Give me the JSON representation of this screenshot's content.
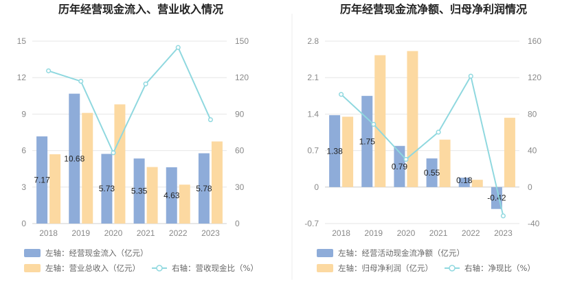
{
  "chart_data": [
    {
      "type": "bar",
      "title": "历年经营现金流入、营业收入情况",
      "categories": [
        "2018",
        "2019",
        "2020",
        "2021",
        "2022",
        "2023"
      ],
      "left_axis": {
        "min": 0,
        "max": 15,
        "ticks": [
          "0",
          "3",
          "6",
          "9",
          "12",
          "15"
        ]
      },
      "right_axis": {
        "min": 0,
        "max": 150,
        "ticks": [
          "0",
          "30",
          "60",
          "90",
          "120",
          "150"
        ]
      },
      "series": [
        {
          "name": "左轴：经营现金流入（亿元）",
          "type": "bar",
          "axis": "left",
          "color": "#8eacd9",
          "values": [
            7.17,
            10.68,
            5.73,
            5.35,
            4.63,
            5.78
          ],
          "labels": [
            "7.17",
            "10.68",
            "5.73",
            "5.35",
            "4.63",
            "5.78"
          ]
        },
        {
          "name": "左轴：营业总收入（亿元）",
          "type": "bar",
          "axis": "left",
          "color": "#fcd9a1",
          "values": [
            5.7,
            9.1,
            9.8,
            4.65,
            3.2,
            6.75
          ]
        },
        {
          "name": "右轴：营收现金比（%）",
          "type": "line",
          "axis": "right",
          "color": "#8fd8df",
          "values": [
            125.6,
            117.0,
            58.2,
            114.8,
            144.8,
            85.4
          ]
        }
      ],
      "grid": true,
      "legend_position": "bottom"
    },
    {
      "type": "bar",
      "title": "历年经营现金流净额、归母净利润情况",
      "categories": [
        "2018",
        "2019",
        "2020",
        "2021",
        "2022",
        "2023"
      ],
      "left_axis": {
        "min": -0.7,
        "max": 2.8,
        "ticks": [
          "-0.7",
          "0",
          "0.7",
          "1.4",
          "2.1",
          "2.8"
        ]
      },
      "right_axis": {
        "min": -40,
        "max": 160,
        "ticks": [
          "-40",
          "0",
          "40",
          "80",
          "120",
          "160"
        ]
      },
      "series": [
        {
          "name": "左轴：经营活动现金流净额（亿元）",
          "type": "bar",
          "axis": "left",
          "color": "#8eacd9",
          "values": [
            1.38,
            1.75,
            0.79,
            0.55,
            0.18,
            -0.42
          ],
          "labels": [
            "1.38",
            "1.75",
            "0.79",
            "0.55",
            "0.18",
            "-0.42"
          ]
        },
        {
          "name": "左轴：归母净利润（亿元）",
          "type": "bar",
          "axis": "left",
          "color": "#fcd9a1",
          "values": [
            1.35,
            2.53,
            2.61,
            0.91,
            0.14,
            1.33
          ]
        },
        {
          "name": "右轴：净现比（%）",
          "type": "line",
          "axis": "right",
          "color": "#8fd8df",
          "values": [
            101.6,
            68.8,
            30.4,
            60.2,
            121.6,
            -31.6
          ]
        }
      ],
      "grid": true,
      "legend_position": "bottom"
    }
  ]
}
